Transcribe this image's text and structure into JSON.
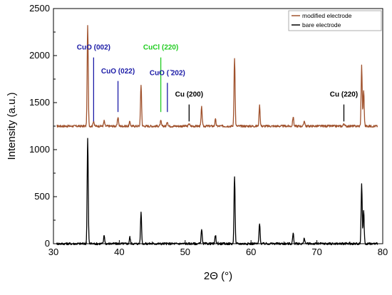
{
  "chart_data": {
    "type": "line",
    "xlabel": "2Θ (°)",
    "ylabel": "Intensity (a.u.)",
    "xlim": [
      30,
      80
    ],
    "ylim": [
      0,
      2500
    ],
    "xticks": [
      30,
      40,
      50,
      60,
      70,
      80
    ],
    "yticks": [
      0,
      500,
      1000,
      1500,
      2000,
      2500
    ],
    "grid": false,
    "legend_position": "top-right",
    "series": [
      {
        "name": "modified electrode",
        "color": "#a0522d",
        "baseline": 1250,
        "peaks": [
          [
            35.2,
            1070
          ],
          [
            36.1,
            60
          ],
          [
            37.7,
            55
          ],
          [
            39.8,
            100
          ],
          [
            41.6,
            50
          ],
          [
            43.3,
            440
          ],
          [
            46.3,
            55
          ],
          [
            47.3,
            50
          ],
          [
            50.6,
            30
          ],
          [
            52.5,
            200
          ],
          [
            54.6,
            70
          ],
          [
            57.5,
            730
          ],
          [
            61.3,
            220
          ],
          [
            66.4,
            100
          ],
          [
            68.1,
            60
          ],
          [
            74.1,
            30
          ],
          [
            76.8,
            640
          ],
          [
            77.1,
            380
          ]
        ]
      },
      {
        "name": "bare electrode",
        "color": "#000000",
        "baseline": 0,
        "peaks": [
          [
            35.2,
            1120
          ],
          [
            37.7,
            90
          ],
          [
            41.6,
            70
          ],
          [
            43.3,
            330
          ],
          [
            52.5,
            160
          ],
          [
            54.6,
            90
          ],
          [
            57.5,
            720
          ],
          [
            61.3,
            220
          ],
          [
            66.4,
            110
          ],
          [
            68.1,
            60
          ],
          [
            76.8,
            640
          ],
          [
            77.1,
            350
          ]
        ]
      }
    ],
    "annotations": [
      {
        "label": "CuO (002)",
        "color": "#1a1aa6",
        "x": 36.1,
        "y": 2065,
        "line_from": 1980,
        "line_to": 1300
      },
      {
        "label": "CuO (022)",
        "color": "#1a1aa6",
        "x": 39.8,
        "y": 1810,
        "line_from": 1730,
        "line_to": 1400
      },
      {
        "label": "CuCl (220)",
        "color": "#22cc22",
        "x": 46.3,
        "y": 2065,
        "line_from": 1980,
        "line_to": 1400
      },
      {
        "label": "CuO ( ̄202)",
        "color": "#1a1aa6",
        "x": 47.3,
        "y": 1790,
        "line_from": 1710,
        "line_to": 1400
      },
      {
        "label": "Cu (200)",
        "color": "#000000",
        "x": 50.6,
        "y": 1565,
        "line_from": 1480,
        "line_to": 1300
      },
      {
        "label": "Cu (220)",
        "color": "#000000",
        "x": 74.1,
        "y": 1565,
        "line_from": 1480,
        "line_to": 1300
      }
    ],
    "tick_labels": {
      "x": [
        "30",
        "40",
        "50",
        "60",
        "70",
        "80"
      ],
      "y": [
        "0",
        "500",
        "1000",
        "1500",
        "2000",
        "2500"
      ]
    }
  }
}
